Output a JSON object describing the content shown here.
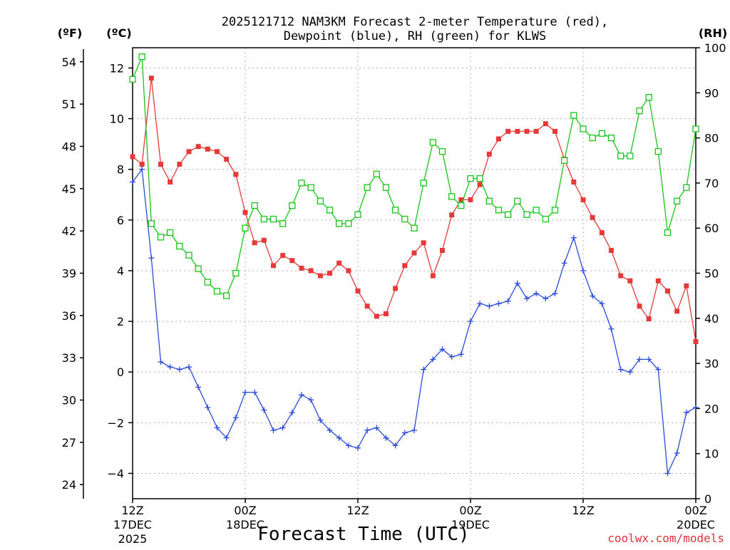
{
  "chart_data": {
    "type": "line",
    "title_line1": "2025121712 NAM3KM Forecast 2-meter Temperature (red),",
    "title_line2": "Dewpoint (blue), RH (green) for KLWS",
    "xlabel": "Forecast Time (UTC)",
    "credit": "coolwx.com/models",
    "unit_f": "(ºF)",
    "unit_c": "(ºC)",
    "unit_rh": "(RH)",
    "x_range_hours": [
      0,
      60
    ],
    "c_range": [
      -5,
      12.8
    ],
    "rh_range": [
      0,
      100
    ],
    "f_range": [
      23,
      55
    ],
    "left_c_ticks": [
      "−4",
      "−2",
      "0",
      "2",
      "4",
      "6",
      "8",
      "10",
      "12"
    ],
    "left_c_tick_values": [
      -4,
      -2,
      0,
      2,
      4,
      6,
      8,
      10,
      12
    ],
    "left_f_ticks": [
      "24",
      "27",
      "30",
      "33",
      "36",
      "39",
      "42",
      "45",
      "48",
      "51",
      "54"
    ],
    "left_f_tick_values": [
      24,
      27,
      30,
      33,
      36,
      39,
      42,
      45,
      48,
      51,
      54
    ],
    "right_rh_ticks": [
      "0",
      "10",
      "20",
      "30",
      "40",
      "50",
      "60",
      "70",
      "80",
      "90",
      "100"
    ],
    "right_rh_tick_values": [
      0,
      10,
      20,
      30,
      40,
      50,
      60,
      70,
      80,
      90,
      100
    ],
    "x_ticks": [
      {
        "hour": 0,
        "label": "12Z",
        "date": "17DEC",
        "year": "2025"
      },
      {
        "hour": 12,
        "label": "00Z",
        "date": "18DEC",
        "year": ""
      },
      {
        "hour": 24,
        "label": "12Z",
        "date": "",
        "year": ""
      },
      {
        "hour": 36,
        "label": "00Z",
        "date": "19DEC",
        "year": ""
      },
      {
        "hour": 48,
        "label": "12Z",
        "date": "",
        "year": ""
      },
      {
        "hour": 60,
        "label": "00Z",
        "date": "20DEC",
        "year": ""
      }
    ],
    "series": [
      {
        "name": "2-meter Temperature",
        "unit": "C",
        "color": "#e63a3a",
        "marker": "filled-square",
        "values": [
          8.5,
          8.2,
          11.6,
          8.2,
          7.5,
          8.2,
          8.7,
          8.9,
          8.8,
          8.7,
          8.4,
          7.8,
          6.3,
          5.1,
          5.2,
          4.2,
          4.6,
          4.4,
          4.1,
          4.0,
          3.8,
          3.9,
          4.3,
          4.0,
          3.2,
          2.6,
          2.2,
          2.3,
          3.3,
          4.2,
          4.7,
          5.1,
          3.8,
          4.8,
          6.2,
          6.8,
          6.8,
          7.4,
          8.6,
          9.2,
          9.5,
          9.5,
          9.5,
          9.5,
          9.8,
          9.5,
          8.4,
          7.5,
          6.8,
          6.1,
          5.5,
          4.8,
          3.8,
          3.6,
          2.6,
          2.1,
          3.6,
          3.2,
          2.4,
          3.4,
          1.2
        ]
      },
      {
        "name": "Dewpoint",
        "unit": "C",
        "color": "#2a4bd7",
        "marker": "plus",
        "values": [
          7.5,
          8.0,
          4.5,
          0.4,
          0.2,
          0.1,
          0.2,
          -0.6,
          -1.4,
          -2.2,
          -2.6,
          -1.8,
          -0.8,
          -0.8,
          -1.5,
          -2.3,
          -2.2,
          -1.6,
          -0.9,
          -1.1,
          -1.9,
          -2.3,
          -2.6,
          -2.9,
          -3.0,
          -2.3,
          -2.2,
          -2.6,
          -2.9,
          -2.4,
          -2.3,
          0.1,
          0.5,
          0.9,
          0.6,
          0.7,
          2.0,
          2.7,
          2.6,
          2.7,
          2.8,
          3.5,
          2.9,
          3.1,
          2.9,
          3.1,
          4.3,
          5.3,
          4.0,
          3.0,
          2.7,
          1.7,
          0.1,
          0.0,
          0.5,
          0.5,
          0.1,
          -4.0,
          -3.2,
          -1.6,
          -1.4
        ]
      },
      {
        "name": "Relative Humidity",
        "unit": "%",
        "color": "#19c41a",
        "marker": "open-square",
        "values": [
          93,
          98,
          61,
          58,
          59,
          56,
          54,
          51,
          48,
          46,
          45,
          50,
          60,
          65,
          62,
          62,
          61,
          65,
          70,
          69,
          66,
          64,
          61,
          61,
          63,
          69,
          72,
          69,
          64,
          62,
          60,
          70,
          79,
          77,
          67,
          65,
          71,
          71,
          66,
          64,
          63,
          66,
          63,
          64,
          62,
          64,
          75,
          85,
          82,
          80,
          81,
          80,
          76,
          76,
          86,
          89,
          77,
          59,
          66,
          69,
          82
        ]
      }
    ]
  }
}
